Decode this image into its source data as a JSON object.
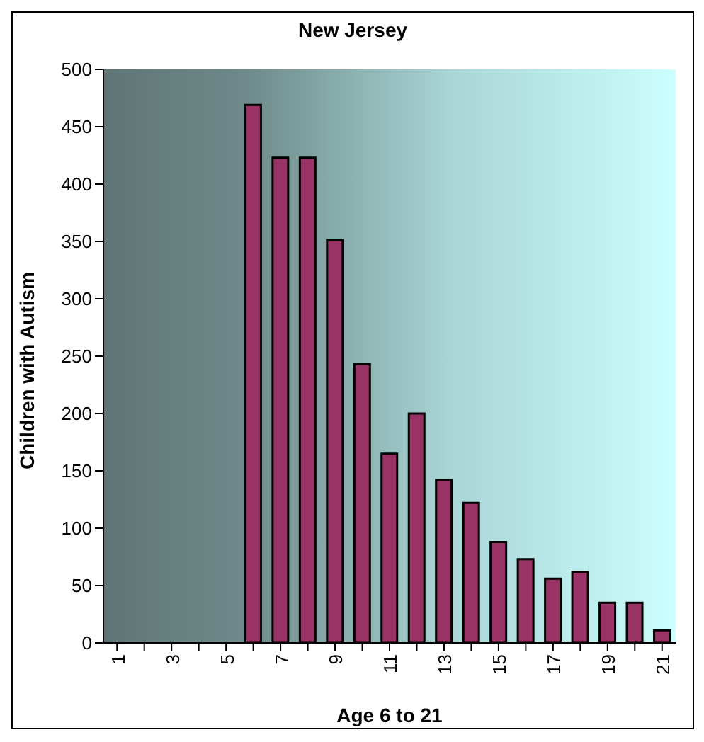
{
  "chart_data": {
    "type": "bar",
    "title": "New Jersey",
    "xlabel": "Age 6 to 21",
    "ylabel": "Children with Autism",
    "categories": [
      "1",
      null,
      "3",
      null,
      "5",
      null,
      "7",
      null,
      "9",
      null,
      "11",
      null,
      "13",
      null,
      "15",
      null,
      "17",
      null,
      "19",
      null,
      "21"
    ],
    "values": [
      null,
      null,
      null,
      null,
      null,
      469,
      423,
      423,
      351,
      243,
      165,
      200,
      142,
      122,
      88,
      73,
      56,
      62,
      35,
      35,
      11
    ],
    "color": "#993366",
    "ylim": [
      0,
      500
    ],
    "yticks": [
      0,
      50,
      100,
      150,
      200,
      250,
      300,
      350,
      400,
      450,
      500
    ],
    "grid": false,
    "legend": false
  }
}
